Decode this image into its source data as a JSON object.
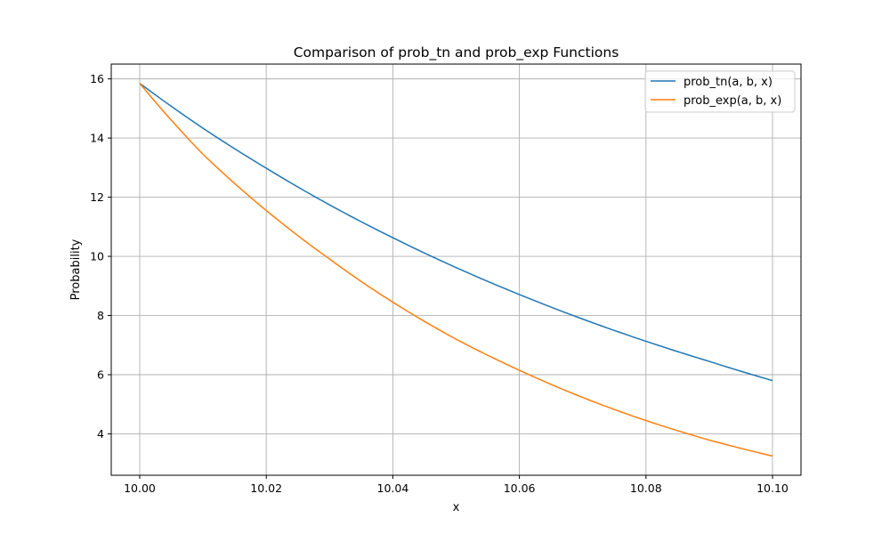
{
  "chart_data": {
    "type": "line",
    "title": "Comparison of prob_tn and prob_exp Functions",
    "xlabel": "x",
    "ylabel": "Probability",
    "xlim": [
      9.9955,
      10.1045
    ],
    "ylim": [
      2.6,
      16.5
    ],
    "xticks": [
      10.0,
      10.02,
      10.04,
      10.06,
      10.08,
      10.1
    ],
    "xtick_labels": [
      "10.00",
      "10.02",
      "10.04",
      "10.06",
      "10.08",
      "10.10"
    ],
    "yticks": [
      4,
      6,
      8,
      10,
      12,
      14,
      16
    ],
    "ytick_labels": [
      "4",
      "6",
      "8",
      "10",
      "12",
      "14",
      "16"
    ],
    "grid": true,
    "legend_position": "top-right",
    "series": [
      {
        "name": "prob_tn(a, b, x)",
        "color": "#1f77b4",
        "x": [
          10.0,
          10.01,
          10.02,
          10.03,
          10.04,
          10.05,
          10.06,
          10.07,
          10.08,
          10.09,
          10.1
        ],
        "values": [
          15.85,
          14.33,
          12.98,
          11.74,
          10.63,
          9.62,
          8.71,
          7.88,
          7.13,
          6.45,
          5.8
        ]
      },
      {
        "name": "prob_exp(a, b, x)",
        "color": "#ff7f0e",
        "x": [
          10.0,
          10.01,
          10.02,
          10.03,
          10.04,
          10.05,
          10.06,
          10.07,
          10.08,
          10.09,
          10.1
        ],
        "values": [
          15.85,
          13.45,
          11.55,
          9.91,
          8.45,
          7.2,
          6.15,
          5.23,
          4.45,
          3.79,
          3.25
        ]
      }
    ]
  }
}
